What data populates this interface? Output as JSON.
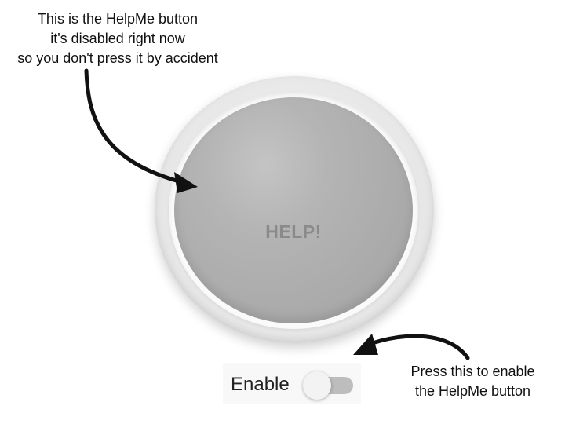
{
  "annotations": {
    "help_note": [
      "This is the HelpMe button",
      "it's disabled right now",
      "so you don't press it by accident"
    ],
    "enable_note": [
      "Press this to enable",
      "the HelpMe button"
    ]
  },
  "help_button": {
    "label": "HELP!",
    "disabled": true
  },
  "enable_toggle": {
    "label": "Enable",
    "checked": false
  },
  "colors": {
    "button_face": "#b0b0b0",
    "button_label": "#8a8a8a",
    "toggle_track": "#bdbdbd",
    "toggle_thumb": "#f3f3f3",
    "annotation_text": "#111111"
  }
}
